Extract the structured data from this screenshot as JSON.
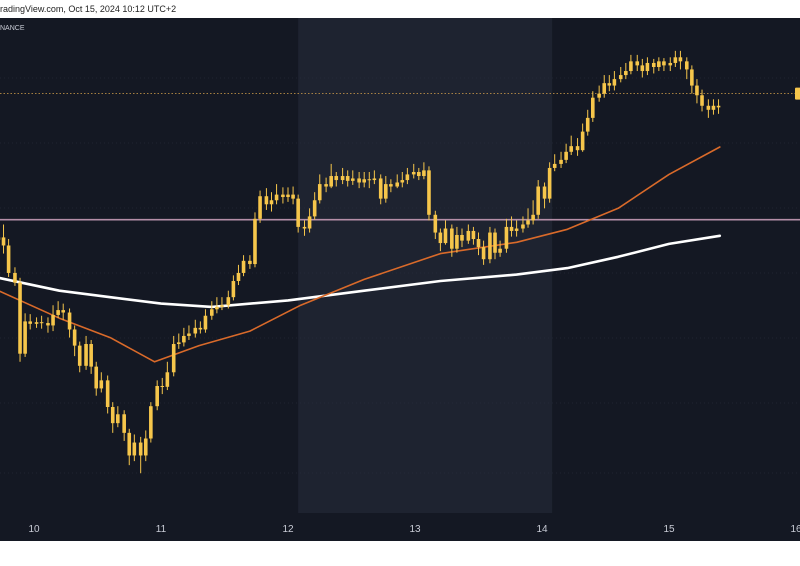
{
  "header": {
    "text": "radingView.com, Oct 15, 2024 10:12 UTC+2"
  },
  "chart_data": {
    "type": "candlestick",
    "exchange_label": "NANCE",
    "x_ticks": [
      "10",
      "11",
      "12",
      "13",
      "14",
      "15",
      "16"
    ],
    "x_range": [
      9.72,
      15.96
    ],
    "y_range": [
      0,
      100
    ],
    "sessions_shaded": [
      [
        12.08,
        14.08
      ]
    ],
    "candles": [
      [
        9.72,
        76.5,
        76.8,
        79.2,
        74.5
      ],
      [
        9.76,
        76.8,
        75.8,
        78.4,
        74.8
      ],
      [
        9.8,
        75.8,
        72.4,
        76.6,
        71.9
      ],
      [
        9.85,
        72.4,
        71.2,
        73.1,
        70.8
      ],
      [
        9.89,
        71.2,
        62.4,
        71.8,
        61.4
      ],
      [
        9.93,
        62.4,
        66.4,
        67.4,
        62.0
      ],
      [
        9.97,
        66.4,
        66.1,
        67.3,
        65.4
      ],
      [
        10.02,
        66.1,
        66.3,
        66.9,
        65.6
      ],
      [
        10.06,
        66.3,
        66.2,
        67.1,
        65.5
      ],
      [
        10.11,
        66.2,
        65.9,
        66.9,
        65.0
      ],
      [
        10.15,
        65.9,
        67.2,
        68.4,
        65.2
      ],
      [
        10.19,
        67.2,
        67.8,
        68.9,
        66.8
      ],
      [
        10.23,
        67.8,
        67.5,
        68.6,
        66.6
      ],
      [
        10.28,
        67.5,
        65.4,
        68.0,
        64.4
      ],
      [
        10.32,
        65.4,
        63.4,
        65.9,
        62.1
      ],
      [
        10.36,
        63.4,
        60.9,
        63.9,
        60.1
      ],
      [
        10.41,
        60.9,
        63.6,
        64.6,
        60.4
      ],
      [
        10.45,
        63.6,
        60.8,
        64.1,
        59.9
      ],
      [
        10.49,
        60.8,
        58.1,
        61.4,
        57.2
      ],
      [
        10.53,
        58.1,
        59.1,
        60.1,
        57.6
      ],
      [
        10.58,
        59.1,
        55.8,
        59.7,
        55.0
      ],
      [
        10.62,
        55.8,
        53.8,
        56.4,
        52.6
      ],
      [
        10.66,
        53.8,
        54.9,
        55.9,
        53.3
      ],
      [
        10.71,
        54.9,
        52.6,
        55.4,
        51.6
      ],
      [
        10.75,
        52.6,
        49.8,
        53.1,
        48.6
      ],
      [
        10.79,
        49.8,
        51.4,
        52.4,
        49.1
      ],
      [
        10.84,
        51.4,
        49.8,
        52.1,
        47.6
      ],
      [
        10.88,
        49.8,
        51.9,
        52.9,
        49.1
      ],
      [
        10.92,
        51.9,
        55.9,
        56.4,
        51.4
      ],
      [
        10.97,
        55.9,
        58.4,
        59.1,
        55.4
      ],
      [
        11.01,
        58.4,
        58.3,
        59.4,
        57.4
      ],
      [
        11.05,
        58.3,
        60.1,
        61.4,
        57.9
      ],
      [
        11.1,
        60.1,
        63.6,
        64.6,
        59.6
      ],
      [
        11.14,
        63.6,
        63.8,
        64.9,
        63.0
      ],
      [
        11.18,
        63.8,
        64.6,
        65.6,
        63.3
      ],
      [
        11.22,
        64.6,
        64.9,
        65.9,
        64.1
      ],
      [
        11.27,
        64.9,
        65.6,
        66.6,
        64.4
      ],
      [
        11.31,
        65.6,
        65.4,
        66.4,
        64.9
      ],
      [
        11.35,
        65.4,
        67.1,
        67.9,
        65.0
      ],
      [
        11.4,
        67.1,
        67.9,
        68.9,
        66.6
      ],
      [
        11.44,
        67.9,
        68.2,
        69.4,
        67.4
      ],
      [
        11.48,
        68.2,
        68.4,
        69.4,
        67.8
      ],
      [
        11.53,
        68.4,
        69.4,
        70.2,
        68.0
      ],
      [
        11.57,
        69.4,
        71.4,
        72.1,
        69.0
      ],
      [
        11.61,
        71.4,
        72.4,
        73.4,
        70.9
      ],
      [
        11.65,
        72.4,
        73.9,
        74.6,
        72.0
      ],
      [
        11.7,
        73.9,
        73.5,
        74.6,
        72.9
      ],
      [
        11.74,
        73.5,
        79.1,
        79.9,
        73.1
      ],
      [
        11.78,
        79.1,
        81.9,
        82.6,
        78.6
      ],
      [
        11.83,
        81.9,
        80.9,
        82.9,
        80.2
      ],
      [
        11.87,
        80.9,
        81.4,
        82.4,
        80.0
      ],
      [
        11.91,
        81.4,
        82.1,
        83.4,
        80.9
      ],
      [
        11.96,
        82.1,
        81.8,
        83.0,
        81.0
      ],
      [
        12.0,
        81.8,
        82.1,
        83.0,
        81.2
      ],
      [
        12.04,
        82.1,
        81.6,
        83.1,
        80.9
      ],
      [
        12.08,
        81.6,
        78.1,
        82.1,
        77.4
      ],
      [
        12.13,
        78.1,
        77.9,
        78.9,
        77.0
      ],
      [
        12.17,
        77.9,
        79.4,
        80.4,
        77.4
      ],
      [
        12.21,
        79.4,
        81.4,
        82.4,
        79.0
      ],
      [
        12.25,
        81.4,
        83.4,
        84.6,
        81.0
      ],
      [
        12.3,
        83.4,
        83.1,
        84.2,
        82.4
      ],
      [
        12.34,
        83.1,
        84.4,
        85.9,
        82.9
      ],
      [
        12.38,
        84.4,
        83.9,
        84.9,
        83.1
      ],
      [
        12.43,
        83.9,
        84.4,
        85.4,
        83.4
      ],
      [
        12.47,
        84.4,
        83.8,
        85.1,
        83.1
      ],
      [
        12.51,
        83.8,
        84.1,
        85.1,
        83.3
      ],
      [
        12.56,
        84.1,
        83.6,
        84.9,
        82.9
      ],
      [
        12.6,
        83.6,
        84.0,
        84.9,
        83.0
      ],
      [
        12.64,
        84.0,
        83.9,
        84.9,
        82.9
      ],
      [
        12.68,
        83.9,
        84.1,
        85.1,
        83.4
      ],
      [
        12.73,
        84.1,
        81.6,
        84.6,
        80.9
      ],
      [
        12.77,
        81.6,
        83.4,
        84.4,
        81.1
      ],
      [
        12.81,
        83.4,
        83.1,
        84.0,
        82.4
      ],
      [
        12.86,
        83.1,
        83.6,
        84.6,
        82.9
      ],
      [
        12.9,
        83.6,
        83.9,
        84.9,
        83.0
      ],
      [
        12.94,
        83.9,
        84.6,
        85.4,
        83.4
      ],
      [
        12.99,
        84.6,
        84.9,
        85.9,
        84.1
      ],
      [
        13.03,
        84.9,
        84.4,
        85.4,
        83.9
      ],
      [
        13.07,
        84.4,
        85.1,
        86.1,
        84.0
      ],
      [
        13.11,
        85.1,
        79.6,
        85.6,
        78.9
      ],
      [
        13.16,
        79.6,
        77.4,
        80.1,
        76.6
      ],
      [
        13.2,
        77.4,
        76.1,
        77.9,
        75.1
      ],
      [
        13.24,
        76.1,
        77.9,
        78.9,
        75.9
      ],
      [
        13.29,
        77.9,
        75.4,
        78.4,
        74.4
      ],
      [
        13.33,
        75.4,
        77.1,
        78.1,
        74.9
      ],
      [
        13.37,
        77.1,
        76.4,
        77.9,
        75.6
      ],
      [
        13.42,
        76.4,
        77.6,
        78.4,
        76.0
      ],
      [
        13.46,
        77.6,
        76.6,
        78.1,
        75.9
      ],
      [
        13.5,
        76.6,
        75.6,
        77.4,
        74.6
      ],
      [
        13.54,
        75.6,
        74.1,
        76.4,
        73.4
      ],
      [
        13.59,
        74.1,
        77.4,
        78.1,
        73.6
      ],
      [
        13.63,
        77.4,
        74.9,
        77.9,
        74.1
      ],
      [
        13.67,
        74.9,
        75.4,
        76.4,
        74.4
      ],
      [
        13.72,
        75.4,
        78.1,
        79.1,
        74.9
      ],
      [
        13.76,
        78.1,
        77.6,
        79.4,
        76.9
      ],
      [
        13.8,
        77.6,
        77.9,
        78.9,
        76.9
      ],
      [
        13.85,
        77.9,
        78.4,
        79.4,
        77.4
      ],
      [
        13.89,
        78.4,
        78.9,
        80.4,
        78.0
      ],
      [
        13.93,
        78.9,
        79.6,
        81.4,
        78.4
      ],
      [
        13.97,
        79.6,
        83.1,
        83.9,
        79.1
      ],
      [
        14.02,
        83.1,
        81.6,
        83.6,
        80.4
      ],
      [
        14.06,
        81.6,
        85.4,
        86.1,
        81.1
      ],
      [
        14.1,
        85.4,
        85.9,
        87.1,
        85.0
      ],
      [
        14.15,
        85.9,
        86.4,
        87.4,
        85.4
      ],
      [
        14.19,
        86.4,
        87.4,
        88.4,
        86.0
      ],
      [
        14.23,
        87.4,
        88.1,
        89.4,
        87.0
      ],
      [
        14.28,
        88.1,
        87.6,
        89.1,
        86.9
      ],
      [
        14.32,
        87.6,
        89.9,
        90.9,
        87.4
      ],
      [
        14.36,
        89.9,
        91.6,
        92.6,
        89.4
      ],
      [
        14.4,
        91.6,
        94.1,
        94.9,
        91.1
      ],
      [
        14.45,
        94.1,
        94.6,
        95.6,
        93.6
      ],
      [
        14.49,
        94.6,
        95.9,
        96.9,
        94.1
      ],
      [
        14.53,
        95.9,
        95.6,
        96.9,
        94.9
      ],
      [
        14.57,
        95.6,
        96.4,
        97.4,
        95.0
      ],
      [
        14.62,
        96.4,
        96.9,
        97.9,
        96.0
      ],
      [
        14.66,
        96.9,
        97.4,
        98.4,
        96.4
      ],
      [
        14.7,
        97.4,
        98.6,
        99.4,
        97.0
      ],
      [
        14.75,
        98.6,
        98.1,
        99.4,
        97.4
      ],
      [
        14.79,
        98.1,
        97.4,
        98.9,
        96.6
      ],
      [
        14.83,
        97.4,
        98.4,
        99.1,
        96.9
      ],
      [
        14.88,
        98.4,
        97.9,
        98.9,
        97.1
      ],
      [
        14.92,
        97.9,
        98.6,
        99.1,
        97.4
      ],
      [
        14.96,
        98.6,
        98.1,
        99.0,
        97.4
      ],
      [
        15.01,
        98.1,
        98.4,
        99.1,
        97.4
      ],
      [
        15.05,
        98.4,
        99.1,
        99.9,
        97.9
      ],
      [
        15.09,
        99.1,
        98.6,
        99.9,
        97.6
      ],
      [
        15.14,
        98.6,
        97.6,
        99.1,
        96.4
      ],
      [
        15.18,
        97.6,
        95.6,
        98.1,
        94.6
      ],
      [
        15.22,
        95.6,
        94.4,
        96.4,
        93.4
      ],
      [
        15.26,
        94.4,
        93.1,
        95.1,
        92.4
      ],
      [
        15.31,
        93.1,
        92.6,
        93.9,
        91.6
      ],
      [
        15.35,
        92.6,
        93.1,
        93.9,
        92.0
      ],
      [
        15.39,
        93.1,
        92.9,
        93.9,
        92.1
      ]
    ],
    "moving_averages": [
      {
        "color": "#ffffff",
        "width": 2.6,
        "points": [
          [
            9.72,
            71.8
          ],
          [
            10.2,
            70.2
          ],
          [
            10.6,
            69.4
          ],
          [
            11.0,
            68.6
          ],
          [
            11.4,
            68.2
          ],
          [
            12.0,
            69.0
          ],
          [
            12.6,
            70.2
          ],
          [
            13.2,
            71.4
          ],
          [
            13.8,
            72.2
          ],
          [
            14.2,
            73.0
          ],
          [
            14.6,
            74.4
          ],
          [
            15.0,
            76.0
          ],
          [
            15.4,
            77.0
          ]
        ]
      },
      {
        "color": "#d96a2a",
        "width": 1.6,
        "points": [
          [
            9.72,
            70.2
          ],
          [
            10.2,
            66.8
          ],
          [
            10.6,
            64.4
          ],
          [
            10.95,
            61.4
          ],
          [
            11.3,
            63.4
          ],
          [
            11.7,
            65.2
          ],
          [
            12.1,
            68.4
          ],
          [
            12.6,
            71.6
          ],
          [
            13.2,
            74.8
          ],
          [
            13.8,
            76.2
          ],
          [
            14.2,
            77.8
          ],
          [
            14.6,
            80.4
          ],
          [
            15.0,
            84.6
          ],
          [
            15.4,
            88.0
          ]
        ]
      }
    ],
    "horizontal_levels": [
      {
        "y": 94.6,
        "color": "#d6a24a",
        "style": "dotted"
      },
      {
        "y": 79.0,
        "color": "#b58fa8",
        "style": "solid"
      }
    ],
    "colors": {
      "bg": "#141823",
      "shade": "#1e2330",
      "candle_up": "#f6c64b",
      "candle_down": "#f6c64b",
      "grid": "#2b3040"
    }
  }
}
